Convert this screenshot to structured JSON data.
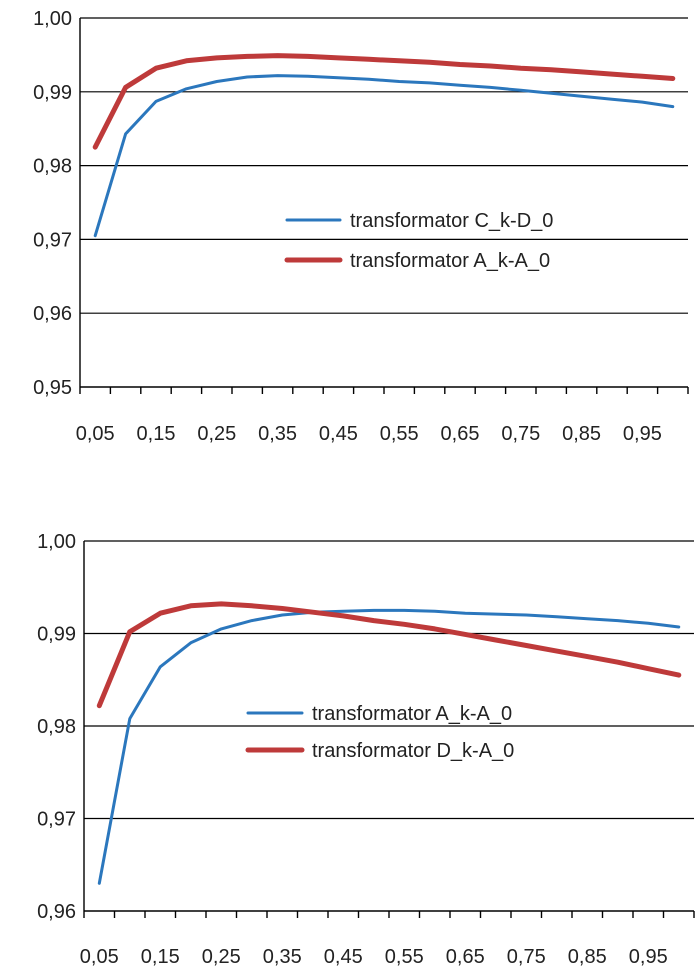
{
  "chart_data": [
    {
      "type": "line",
      "title": "",
      "xlabel": "",
      "ylabel": "",
      "x": [
        0.05,
        0.1,
        0.15,
        0.2,
        0.25,
        0.3,
        0.35,
        0.4,
        0.45,
        0.5,
        0.55,
        0.6,
        0.65,
        0.7,
        0.75,
        0.8,
        0.85,
        0.9,
        0.95,
        1.0
      ],
      "x_tick_labels": [
        "0,05",
        "0,15",
        "0,25",
        "0,35",
        "0,45",
        "0,55",
        "0,65",
        "0,75",
        "0,85",
        "0,95"
      ],
      "y_tick_labels": [
        "0,95",
        "0,96",
        "0,97",
        "0,98",
        "0,99",
        "1,00"
      ],
      "ylim": [
        0.95,
        1.0
      ],
      "grid": true,
      "legend_position": "center-right",
      "series": [
        {
          "name": "transformator C_k-D_0",
          "color": "#2b77bd",
          "values": [
            0.9705,
            0.9843,
            0.9887,
            0.9904,
            0.9914,
            0.992,
            0.9922,
            0.9921,
            0.9919,
            0.9917,
            0.9914,
            0.9912,
            0.9909,
            0.9906,
            0.9902,
            0.9898,
            0.9894,
            0.989,
            0.9886,
            0.988
          ]
        },
        {
          "name": "transformator A_k-A_0",
          "color": "#be3a3a",
          "values": [
            0.9825,
            0.9906,
            0.9932,
            0.9942,
            0.9946,
            0.9948,
            0.9949,
            0.9948,
            0.9946,
            0.9944,
            0.9942,
            0.994,
            0.9937,
            0.9935,
            0.9932,
            0.993,
            0.9927,
            0.9924,
            0.9921,
            0.9918
          ]
        }
      ]
    },
    {
      "type": "line",
      "title": "",
      "xlabel": "",
      "ylabel": "",
      "x": [
        0.05,
        0.1,
        0.15,
        0.2,
        0.25,
        0.3,
        0.35,
        0.4,
        0.45,
        0.5,
        0.55,
        0.6,
        0.65,
        0.7,
        0.75,
        0.8,
        0.85,
        0.9,
        0.95,
        1.0
      ],
      "x_tick_labels": [
        "0,05",
        "0,15",
        "0,25",
        "0,35",
        "0,45",
        "0,55",
        "0,65",
        "0,75",
        "0,85",
        "0,95"
      ],
      "y_tick_labels": [
        "0,96",
        "0,97",
        "0,98",
        "0,99",
        "1,00"
      ],
      "ylim": [
        0.96,
        1.0
      ],
      "grid": true,
      "legend_position": "lower-center",
      "series": [
        {
          "name": "transformator A_k-A_0",
          "color": "#2b77bd",
          "values": [
            0.963,
            0.9808,
            0.9864,
            0.989,
            0.9905,
            0.9914,
            0.992,
            0.9923,
            0.9924,
            0.9925,
            0.9925,
            0.9924,
            0.9922,
            0.9921,
            0.992,
            0.9918,
            0.9916,
            0.9914,
            0.9911,
            0.9907
          ]
        },
        {
          "name": "transformator D_k-A_0",
          "color": "#be3a3a",
          "values": [
            0.9822,
            0.9902,
            0.9922,
            0.993,
            0.9932,
            0.993,
            0.9927,
            0.9923,
            0.9919,
            0.9914,
            0.991,
            0.9905,
            0.9899,
            0.9893,
            0.9887,
            0.9881,
            0.9875,
            0.9869,
            0.9862,
            0.9855
          ]
        }
      ]
    }
  ]
}
